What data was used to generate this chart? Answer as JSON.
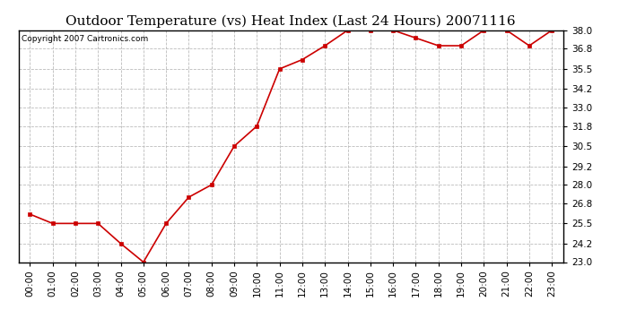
{
  "title": "Outdoor Temperature (vs) Heat Index (Last 24 Hours) 20071116",
  "copyright_text": "Copyright 2007 Cartronics.com",
  "hours": [
    "00:00",
    "01:00",
    "02:00",
    "03:00",
    "04:00",
    "05:00",
    "06:00",
    "07:00",
    "08:00",
    "09:00",
    "10:00",
    "11:00",
    "12:00",
    "13:00",
    "14:00",
    "15:00",
    "16:00",
    "17:00",
    "18:00",
    "19:00",
    "20:00",
    "21:00",
    "22:00",
    "23:00"
  ],
  "values": [
    26.1,
    25.5,
    25.5,
    25.5,
    24.2,
    23.0,
    25.5,
    27.2,
    28.0,
    30.5,
    31.8,
    35.5,
    36.1,
    37.0,
    38.0,
    38.0,
    38.0,
    37.5,
    37.0,
    37.0,
    38.0,
    38.0,
    37.0,
    38.0
  ],
  "line_color": "#cc0000",
  "marker": "s",
  "marker_size": 3,
  "ylim": [
    23.0,
    38.0
  ],
  "yticks": [
    23.0,
    24.2,
    25.5,
    26.8,
    28.0,
    29.2,
    30.5,
    31.8,
    33.0,
    34.2,
    35.5,
    36.8,
    38.0
  ],
  "bg_color": "#ffffff",
  "grid_color": "#bbbbbb",
  "title_fontsize": 11,
  "copyright_fontsize": 6.5,
  "tick_fontsize": 7.5,
  "fig_width": 6.9,
  "fig_height": 3.75,
  "dpi": 100
}
